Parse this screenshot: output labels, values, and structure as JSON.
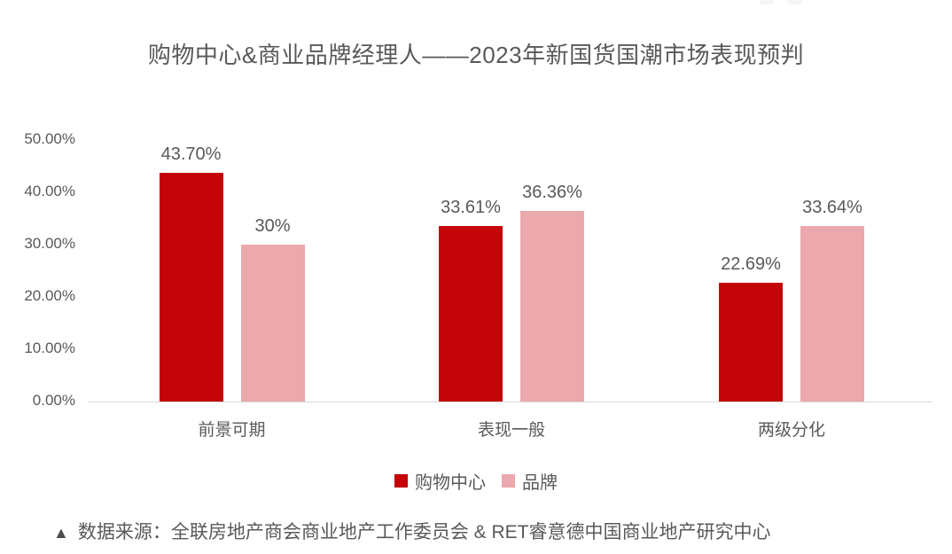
{
  "chart_data": {
    "type": "bar",
    "title": "购物中心&商业品牌经理人——2023年新国货国潮市场表现预判",
    "categories": [
      "前景可期",
      "表现一般",
      "两级分化"
    ],
    "series": [
      {
        "name": "购物中心",
        "color": "#c40408",
        "values": [
          43.7,
          33.61,
          22.69
        ],
        "labels": [
          "43.70%",
          "33.61%",
          "22.69%"
        ]
      },
      {
        "name": "品牌",
        "color": "#eba8ad",
        "values": [
          30,
          36.36,
          33.64
        ],
        "labels": [
          "30%",
          "36.36%",
          "33.64%"
        ]
      }
    ],
    "ylim": [
      0,
      50
    ],
    "yticks": [
      {
        "value": 0,
        "label": "0.00%"
      },
      {
        "value": 10,
        "label": "10.00%"
      },
      {
        "value": 20,
        "label": "20.00%"
      },
      {
        "value": 30,
        "label": "30.00%"
      },
      {
        "value": 40,
        "label": "40.00%"
      },
      {
        "value": 50,
        "label": "50.00%"
      }
    ],
    "grid": false,
    "legend_position": "bottom",
    "axis_color": "#d9d9d9",
    "text_color": "#595959"
  },
  "source": {
    "icon": "▲",
    "text": "数据来源：全联房地产商会商业地产工作委员会 & RET睿意德中国商业地产研究中心"
  }
}
